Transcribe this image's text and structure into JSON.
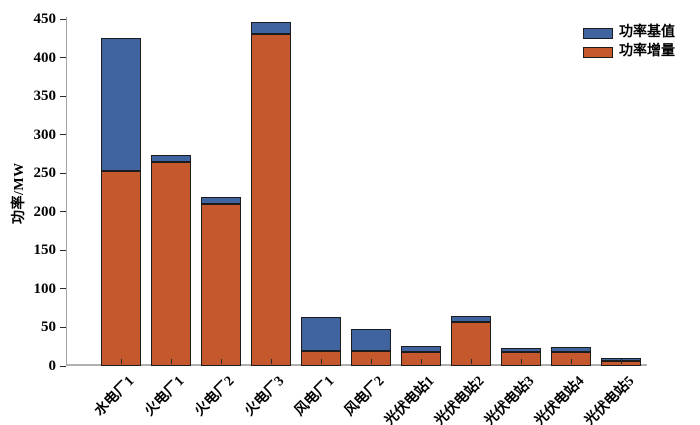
{
  "chart_data": {
    "type": "bar",
    "stacked": true,
    "orientation": "vertical",
    "title": "",
    "xlabel": "",
    "ylabel": "功率/MW",
    "ylim": [
      0,
      450
    ],
    "ytick_step": 50,
    "grid": false,
    "legend_position": "top-right",
    "categories": [
      "水电厂1",
      "火电厂1",
      "火电厂2",
      "火电厂3",
      "风电厂1",
      "风电厂2",
      "光伏电站1",
      "光伏电站2",
      "光伏电站3",
      "光伏电站4",
      "光伏电站5"
    ],
    "series": [
      {
        "name": "功率基值",
        "color": "#3F649F",
        "stack_position": "top",
        "values": [
          172,
          8,
          9,
          16,
          44,
          29,
          8,
          8,
          5,
          6,
          3
        ]
      },
      {
        "name": "功率增量",
        "color": "#C5582C",
        "stack_position": "bottom",
        "values": [
          253,
          265,
          210,
          430,
          19,
          19,
          18,
          57,
          18,
          18,
          7
        ]
      }
    ],
    "stack_totals": [
      425,
      273,
      219,
      446,
      63,
      48,
      26,
      65,
      23,
      24,
      10
    ],
    "bar_edge_color": "#1c1c1c",
    "axis_color": "#a3a3a3",
    "tick_color": "#2a2a2a",
    "text_color": "#000000",
    "background_color": "#ffffff"
  }
}
